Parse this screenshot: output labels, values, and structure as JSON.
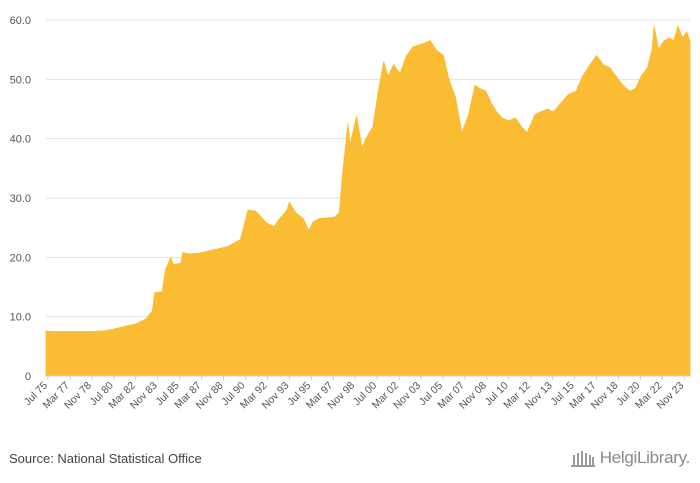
{
  "source": "Source: National Statistical Office",
  "brand": "HelgiLibrary.",
  "colors": {
    "area": "#F9BC33",
    "grid": "#e3e3e3",
    "axis": "#c9d1e6"
  },
  "chart_data": {
    "type": "area",
    "title": "",
    "xlabel": "",
    "ylabel": "",
    "ylim": [
      0,
      60
    ],
    "yticks": [
      "0",
      "10.0",
      "20.0",
      "30.0",
      "40.0",
      "50.0",
      "60.0"
    ],
    "grid": true,
    "legend": "none",
    "xticks": [
      "Jul 75",
      "Mar 77",
      "Nov 78",
      "Jul 80",
      "Mar 82",
      "Nov 83",
      "Jul 85",
      "Mar 87",
      "Nov 88",
      "Jul 90",
      "Mar 92",
      "Nov 93",
      "Jul 95",
      "Mar 97",
      "Nov 98",
      "Jul 00",
      "Mar 02",
      "Nov 03",
      "Jul 05",
      "Mar 07",
      "Nov 08",
      "Jul 10",
      "Mar 12",
      "Nov 13",
      "Jul 15",
      "Mar 17",
      "Nov 18",
      "Jul 20",
      "Mar 22",
      "Nov 23"
    ],
    "x_range": [
      "1975-07",
      "2024-12"
    ],
    "series": [
      {
        "points": [
          [
            "1975-07",
            7.6
          ],
          [
            "1976-01",
            7.5
          ],
          [
            "1977-01",
            7.5
          ],
          [
            "1978-01",
            7.5
          ],
          [
            "1979-01",
            7.5
          ],
          [
            "1980-01",
            7.6
          ],
          [
            "1980-07",
            7.8
          ],
          [
            "1981-06",
            8.3
          ],
          [
            "1982-06",
            8.8
          ],
          [
            "1983-03",
            9.6
          ],
          [
            "1983-09",
            11.0
          ],
          [
            "1983-11",
            14.0
          ],
          [
            "1984-06",
            14.2
          ],
          [
            "1984-09",
            18.0
          ],
          [
            "1985-02",
            20.0
          ],
          [
            "1985-04",
            18.8
          ],
          [
            "1985-11",
            19.0
          ],
          [
            "1986-01",
            20.8
          ],
          [
            "1986-06",
            20.6
          ],
          [
            "1987-04",
            20.7
          ],
          [
            "1988-06",
            21.3
          ],
          [
            "1989-06",
            21.8
          ],
          [
            "1990-06",
            23.0
          ],
          [
            "1991-01",
            28.0
          ],
          [
            "1991-08",
            27.8
          ],
          [
            "1992-06",
            25.8
          ],
          [
            "1993-01",
            25.2
          ],
          [
            "1993-06",
            26.5
          ],
          [
            "1994-01",
            28.0
          ],
          [
            "1994-03",
            29.3
          ],
          [
            "1994-09",
            27.5
          ],
          [
            "1995-04",
            26.5
          ],
          [
            "1995-09",
            24.5
          ],
          [
            "1996-01",
            26.0
          ],
          [
            "1996-06",
            26.5
          ],
          [
            "1997-09",
            26.8
          ],
          [
            "1998-01",
            27.5
          ],
          [
            "1998-04",
            34.0
          ],
          [
            "1998-09",
            42.5
          ],
          [
            "1998-11",
            39.0
          ],
          [
            "1999-05",
            43.8
          ],
          [
            "1999-10",
            38.5
          ],
          [
            "2000-03",
            40.5
          ],
          [
            "2000-08",
            42.0
          ],
          [
            "2001-01",
            48.0
          ],
          [
            "2001-06",
            53.0
          ],
          [
            "2001-10",
            50.5
          ],
          [
            "2002-03",
            52.5
          ],
          [
            "2002-09",
            51.0
          ],
          [
            "2003-03",
            54.0
          ],
          [
            "2003-09",
            55.5
          ],
          [
            "2004-06",
            56.0
          ],
          [
            "2005-01",
            56.5
          ],
          [
            "2005-06",
            55.0
          ],
          [
            "2006-01",
            54.0
          ],
          [
            "2006-06",
            50.0
          ],
          [
            "2006-12",
            47.0
          ],
          [
            "2007-06",
            41.0
          ],
          [
            "2007-12",
            44.0
          ],
          [
            "2008-06",
            49.0
          ],
          [
            "2008-10",
            48.5
          ],
          [
            "2009-04",
            48.0
          ],
          [
            "2009-09",
            46.0
          ],
          [
            "2010-02",
            44.5
          ],
          [
            "2010-07",
            43.5
          ],
          [
            "2011-01",
            43.0
          ],
          [
            "2011-07",
            43.5
          ],
          [
            "2012-01",
            42.0
          ],
          [
            "2012-06",
            41.0
          ],
          [
            "2013-01",
            44.0
          ],
          [
            "2013-06",
            44.5
          ],
          [
            "2014-01",
            45.0
          ],
          [
            "2014-06",
            44.5
          ],
          [
            "2015-01",
            46.0
          ],
          [
            "2015-08",
            47.5
          ],
          [
            "2016-03",
            48.0
          ],
          [
            "2016-09",
            50.5
          ],
          [
            "2017-04",
            52.5
          ],
          [
            "2017-10",
            54.0
          ],
          [
            "2018-04",
            52.5
          ],
          [
            "2018-10",
            52.0
          ],
          [
            "2019-06",
            50.0
          ],
          [
            "2020-01",
            48.5
          ],
          [
            "2020-05",
            48.0
          ],
          [
            "2020-10",
            48.5
          ],
          [
            "2021-03",
            50.5
          ],
          [
            "2021-09",
            52.0
          ],
          [
            "2022-01",
            55.0
          ],
          [
            "2022-03",
            59.0
          ],
          [
            "2022-07",
            55.0
          ],
          [
            "2022-12",
            56.5
          ],
          [
            "2023-05",
            57.0
          ],
          [
            "2023-09",
            56.5
          ],
          [
            "2024-01",
            59.0
          ],
          [
            "2024-05",
            57.0
          ],
          [
            "2024-09",
            58.0
          ],
          [
            "2024-12",
            56.5
          ]
        ]
      }
    ]
  }
}
